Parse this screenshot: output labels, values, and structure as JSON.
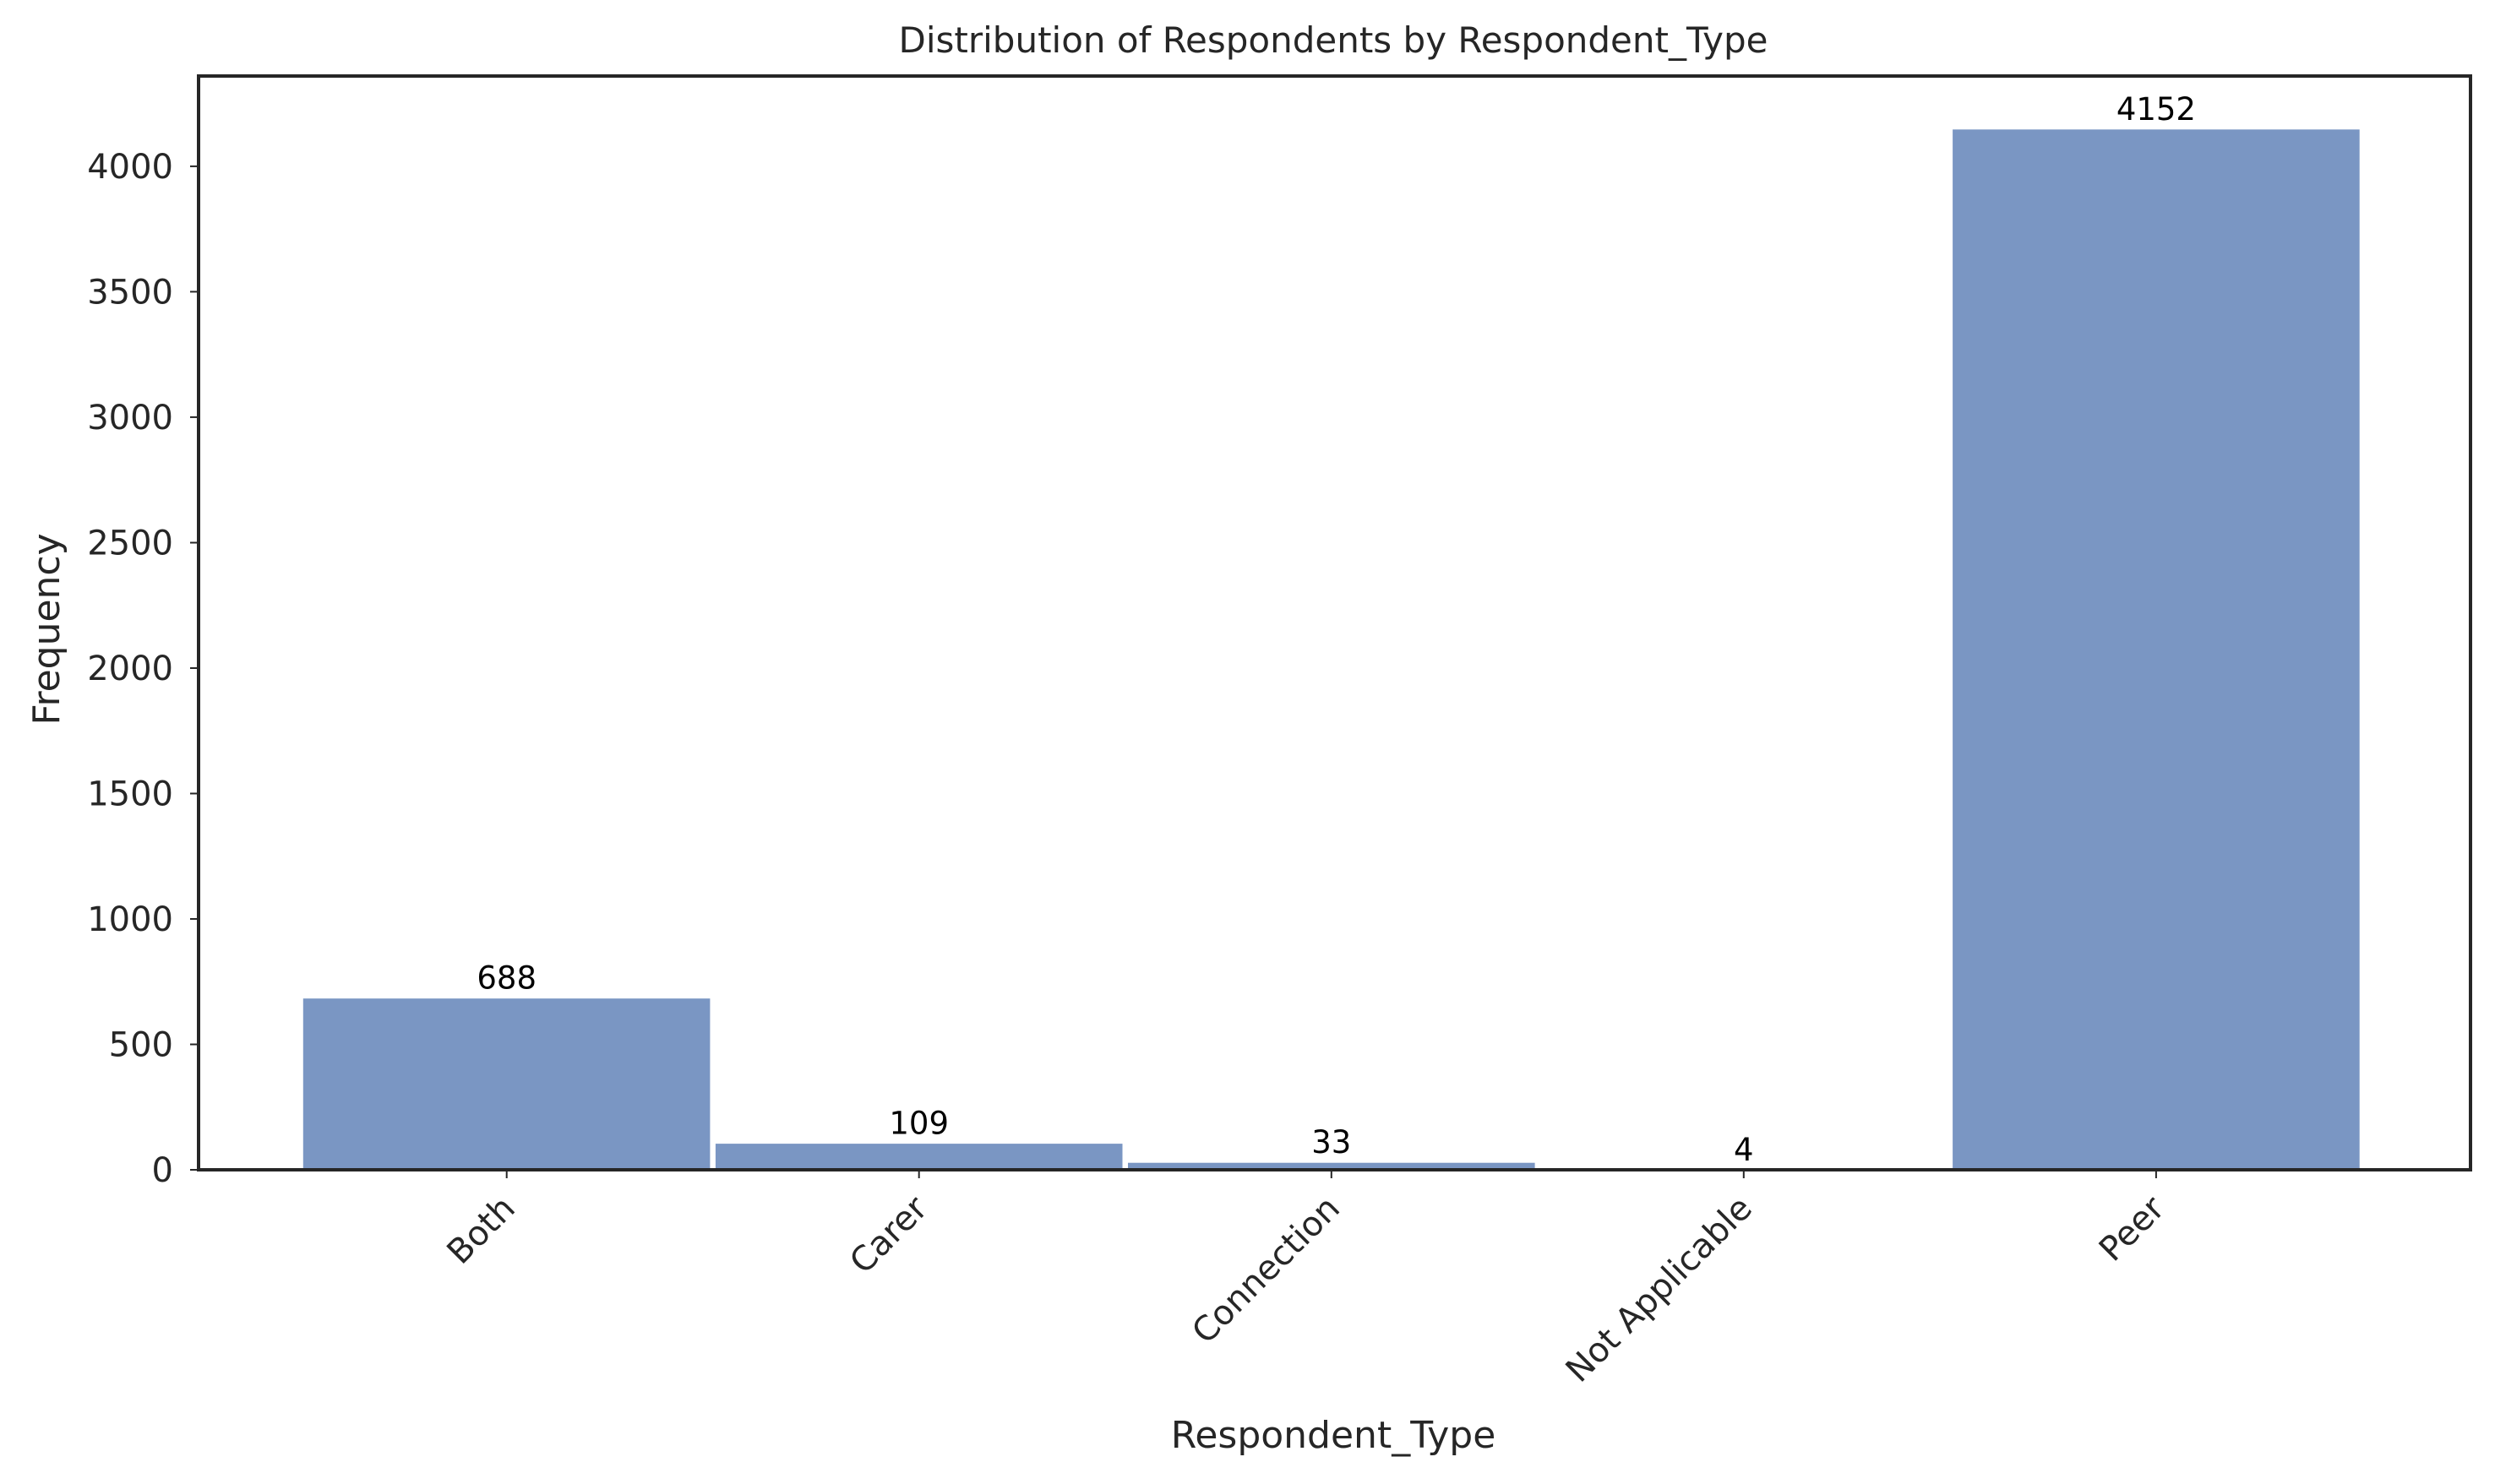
{
  "chart_data": {
    "type": "bar",
    "title": "Distribution of Respondents by Respondent_Type",
    "xlabel": "Respondent_Type",
    "ylabel": "Frequency",
    "categories": [
      "Both",
      "Carer",
      "Connection",
      "Not Applicable",
      "Peer"
    ],
    "values": [
      688,
      109,
      33,
      4,
      4152
    ],
    "data_labels": [
      "688",
      "109",
      "33",
      "4",
      "4152"
    ],
    "ylim": [
      0,
      4360
    ],
    "yticks": [
      0,
      500,
      1000,
      1500,
      2000,
      2500,
      3000,
      3500,
      4000
    ],
    "ytick_labels": [
      "0",
      "500",
      "1000",
      "1500",
      "2000",
      "2500",
      "3000",
      "3500",
      "4000"
    ],
    "grid": false,
    "legend": "none",
    "xtick_rotation_deg": 45,
    "colors": {
      "bar": "#7a96c3",
      "bar_edge": "#ffffff",
      "axis": "#262626",
      "text": "#262626",
      "data_label": "#000000"
    }
  }
}
